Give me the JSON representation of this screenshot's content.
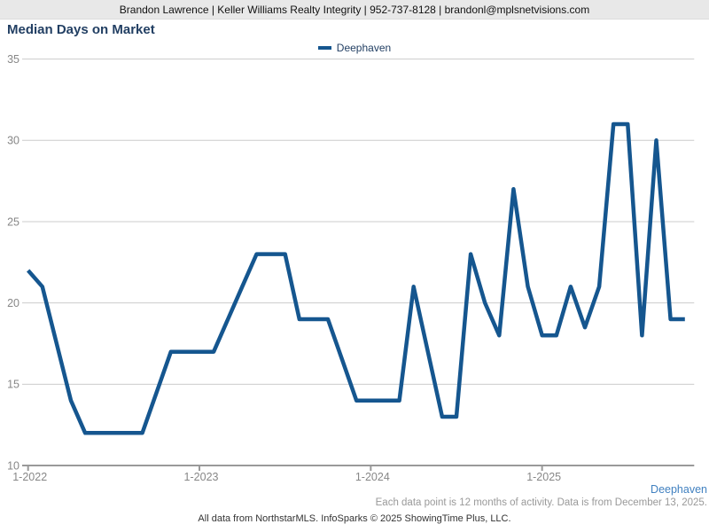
{
  "header": {
    "contact_line": "Brandon Lawrence | Keller Williams Realty Integrity | 952-737-8128 | brandonl@mplsnetvisions.com"
  },
  "title": "Median Days on Market",
  "legend": {
    "label": "Deephaven"
  },
  "footer": {
    "series_label": "Deephaven",
    "note": "Each data point is 12 months of activity. Data is from December 13, 2025.",
    "credit": "All data from NorthstarMLS. InfoSparks © 2025 ShowingTime Plus, LLC."
  },
  "colors": {
    "header_bg": "#e8e8e8",
    "title_text": "#223f63",
    "line_blue": "#15568f",
    "series_label_blue": "#4181c0",
    "gridline": "#cccccc",
    "axis": "#999999",
    "tick_label": "#878787"
  },
  "chart_data": {
    "type": "line",
    "title": "Median Days on Market",
    "xlabel": "",
    "ylabel": "",
    "ylim": [
      10,
      35
    ],
    "yticks": [
      10,
      15,
      20,
      25,
      30,
      35
    ],
    "grid": "horizontal",
    "legend_position": "top-center",
    "x": [
      "1-2022",
      "2-2022",
      "3-2022",
      "4-2022",
      "5-2022",
      "6-2022",
      "7-2022",
      "8-2022",
      "9-2022",
      "10-2022",
      "11-2022",
      "12-2022",
      "1-2023",
      "2-2023",
      "3-2023",
      "4-2023",
      "5-2023",
      "6-2023",
      "7-2023",
      "8-2023",
      "9-2023",
      "10-2023",
      "11-2023",
      "12-2023",
      "1-2024",
      "2-2024",
      "3-2024",
      "4-2024",
      "5-2024",
      "6-2024",
      "7-2024",
      "8-2024",
      "9-2024",
      "10-2024",
      "11-2024",
      "12-2024",
      "1-2025",
      "2-2025",
      "3-2025",
      "4-2025",
      "5-2025",
      "6-2025",
      "7-2025",
      "8-2025",
      "9-2025",
      "10-2025",
      "11-2025"
    ],
    "x_tick_labels": [
      "1-2022",
      "1-2023",
      "1-2024",
      "1-2025"
    ],
    "x_tick_indices": [
      0,
      12,
      24,
      36
    ],
    "series": [
      {
        "name": "Deephaven",
        "color": "#15568f",
        "values": [
          22,
          21,
          17.5,
          14,
          12,
          12,
          12,
          12,
          12,
          14.5,
          17,
          17,
          17,
          17,
          19,
          21,
          23,
          23,
          23,
          19,
          19,
          19,
          16.5,
          14,
          14,
          14,
          14,
          21,
          17,
          13,
          13,
          23,
          20,
          18,
          27,
          21,
          18,
          18,
          21,
          18.5,
          21,
          31,
          31,
          18,
          30,
          19,
          19
        ]
      }
    ]
  }
}
